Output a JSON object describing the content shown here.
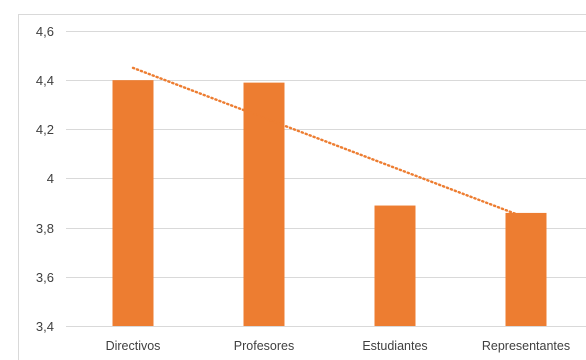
{
  "chart_data": {
    "type": "bar",
    "categories": [
      "Directivos",
      "Profesores",
      "Estudiantes",
      "Representantes"
    ],
    "values": [
      4.4,
      4.39,
      3.89,
      3.86
    ],
    "ylim": [
      3.4,
      4.6
    ],
    "yticks": [
      {
        "value": 3.4,
        "label": "3,4"
      },
      {
        "value": 3.6,
        "label": "3,6"
      },
      {
        "value": 3.8,
        "label": "3,8"
      },
      {
        "value": 4.0,
        "label": "4"
      },
      {
        "value": 4.2,
        "label": "4,2"
      },
      {
        "value": 4.4,
        "label": "4,4"
      },
      {
        "value": 4.6,
        "label": "4,6"
      }
    ],
    "trendline": {
      "type": "linear",
      "style": "dotted",
      "start": 4.45,
      "end": 3.84
    },
    "grid": true,
    "legend": "none",
    "bar_color": "#ED7D31",
    "grid_color": "#d9d9d9"
  }
}
